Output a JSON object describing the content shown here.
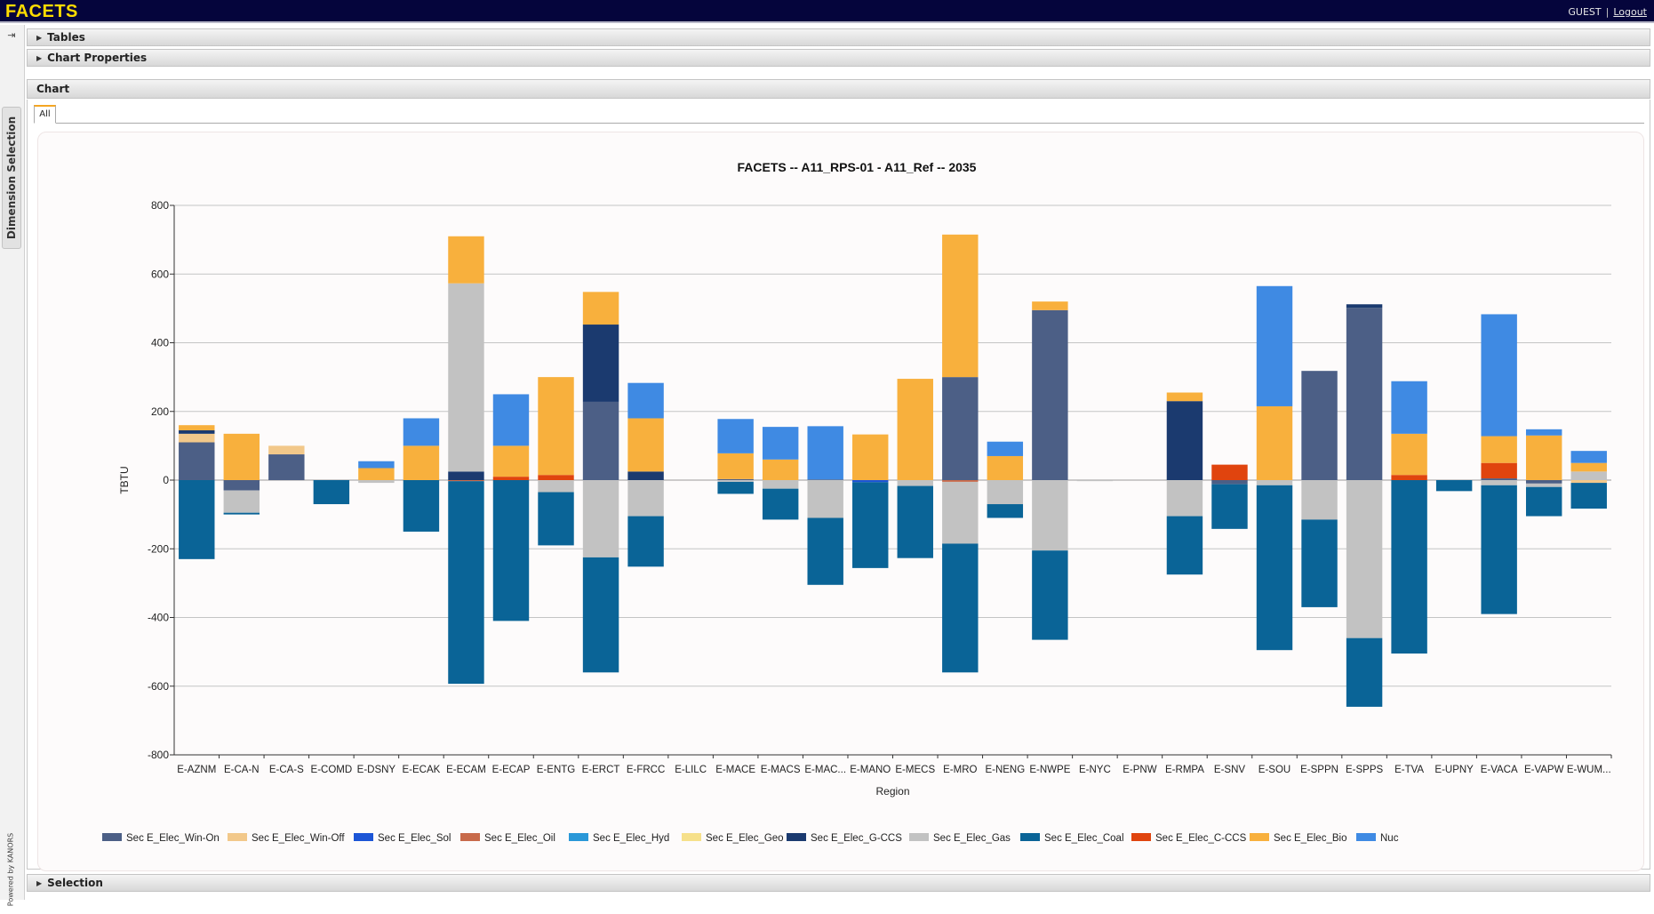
{
  "app": {
    "title": "FACETS",
    "user": "GUEST",
    "separator": "|",
    "logout": "Logout"
  },
  "sidebar": {
    "pin_icon": "pin-icon",
    "dimension_tab": "Dimension Selection",
    "powered_by": "Powered by KANORS"
  },
  "panels": {
    "tables": "Tables",
    "chart_properties": "Chart Properties",
    "chart": "Chart",
    "selection": "Selection"
  },
  "tabs": [
    {
      "label": "All"
    }
  ],
  "colors": {
    "Win-On": "#4c5f86",
    "Win-Off": "#f2c88a",
    "Sol": "#1c55d6",
    "Oil": "#c86a4a",
    "Hyd": "#2a98d8",
    "Geo": "#f6e08a",
    "G-CCS": "#1b3a6f",
    "Gas": "#c2c2c2",
    "Coal": "#0a6497",
    "C-CCS": "#e0440e",
    "Bio": "#f8b03d",
    "Nuc": "#3f8ae3"
  },
  "chart_data": {
    "type": "bar",
    "stacked": true,
    "title": "FACETS -- A11_RPS-01 - A11_Ref -- 2035",
    "xlabel": "Region",
    "ylabel": "TBTU",
    "ylim": [
      -800,
      800
    ],
    "yticks": [
      -800,
      -600,
      -400,
      -200,
      0,
      200,
      400,
      600,
      800
    ],
    "grid": true,
    "legend_position": "bottom",
    "categories": [
      "E-AZNM",
      "E-CA-N",
      "E-CA-S",
      "E-COMD",
      "E-DSNY",
      "E-ECAK",
      "E-ECAM",
      "E-ECAP",
      "E-ENTG",
      "E-ERCT",
      "E-FRCC",
      "E-LILC",
      "E-MACE",
      "E-MACS",
      "E-MAC...",
      "E-MANO",
      "E-MECS",
      "E-MRO",
      "E-NENG",
      "E-NWPE",
      "E-NYC",
      "E-PNW",
      "E-RMPA",
      "E-SNV",
      "E-SOU",
      "E-SPPN",
      "E-SPPS",
      "E-TVA",
      "E-UPNY",
      "E-VACA",
      "E-VAPW",
      "E-WUM..."
    ],
    "series": [
      {
        "name": "Sec E_Elec_Win-On",
        "key": "Win-On",
        "values": [
          110,
          -30,
          75,
          0,
          0,
          0,
          0,
          0,
          0,
          228,
          0,
          0,
          3,
          0,
          2,
          0,
          0,
          300,
          0,
          495,
          0,
          0,
          0,
          -12,
          0,
          318,
          502,
          0,
          0,
          5,
          -10,
          0
        ]
      },
      {
        "name": "Sec E_Elec_Win-Off",
        "key": "Win-Off",
        "values": [
          25,
          0,
          25,
          0,
          0,
          0,
          0,
          0,
          0,
          0,
          0,
          0,
          0,
          0,
          0,
          0,
          0,
          0,
          0,
          0,
          0,
          0,
          0,
          0,
          0,
          0,
          0,
          0,
          0,
          0,
          0,
          -8
        ]
      },
      {
        "name": "Sec E_Elec_Sol",
        "key": "Sol",
        "values": [
          0,
          0,
          0,
          0,
          0,
          0,
          0,
          0,
          0,
          0,
          0,
          0,
          0,
          0,
          0,
          -6,
          0,
          0,
          0,
          0,
          0,
          0,
          0,
          0,
          0,
          0,
          0,
          0,
          0,
          0,
          0,
          0
        ]
      },
      {
        "name": "Sec E_Elec_Oil",
        "key": "Oil",
        "values": [
          0,
          0,
          0,
          0,
          0,
          0,
          -3,
          0,
          0,
          0,
          0,
          0,
          0,
          0,
          0,
          0,
          0,
          -5,
          0,
          0,
          0,
          0,
          0,
          0,
          0,
          0,
          0,
          0,
          0,
          0,
          0,
          0
        ]
      },
      {
        "name": "Sec E_Elec_Hyd",
        "key": "Hyd",
        "values": [
          0,
          0,
          0,
          0,
          0,
          0,
          0,
          0,
          0,
          0,
          0,
          0,
          0,
          0,
          0,
          0,
          0,
          0,
          0,
          0,
          0,
          0,
          0,
          0,
          0,
          0,
          0,
          0,
          0,
          0,
          0,
          0
        ]
      },
      {
        "name": "Sec E_Elec_Geo",
        "key": "Geo",
        "values": [
          0,
          0,
          0,
          0,
          0,
          0,
          0,
          0,
          0,
          0,
          0,
          0,
          0,
          0,
          0,
          0,
          0,
          0,
          0,
          0,
          0,
          0,
          0,
          0,
          0,
          0,
          0,
          0,
          0,
          0,
          0,
          0
        ]
      },
      {
        "name": "Sec E_Elec_G-CCS",
        "key": "G-CCS",
        "values": [
          10,
          0,
          0,
          0,
          0,
          0,
          25,
          0,
          0,
          225,
          25,
          0,
          0,
          0,
          0,
          0,
          0,
          0,
          0,
          0,
          0,
          0,
          230,
          0,
          0,
          0,
          10,
          0,
          0,
          0,
          0,
          0
        ]
      },
      {
        "name": "Sec E_Elec_Gas",
        "key": "Gas",
        "values": [
          0,
          -65,
          0,
          0,
          -8,
          0,
          548,
          0,
          -35,
          -225,
          -105,
          0,
          -5,
          -25,
          -110,
          0,
          -17,
          -180,
          -70,
          -205,
          -3,
          0,
          -105,
          0,
          -15,
          -115,
          -460,
          0,
          0,
          -15,
          -10,
          25
        ]
      },
      {
        "name": "Sec E_Elec_Coal",
        "key": "Coal",
        "values": [
          -230,
          -5,
          0,
          -70,
          0,
          -150,
          -590,
          -410,
          -155,
          -335,
          -147,
          0,
          -35,
          -90,
          -195,
          -250,
          -210,
          -375,
          -40,
          -260,
          0,
          0,
          -170,
          -130,
          -480,
          -255,
          -200,
          -505,
          -32,
          -375,
          -85,
          -75
        ]
      },
      {
        "name": "Sec E_Elec_C-CCS",
        "key": "C-CCS",
        "values": [
          0,
          0,
          0,
          0,
          0,
          0,
          0,
          10,
          15,
          0,
          0,
          0,
          0,
          0,
          0,
          0,
          0,
          0,
          0,
          0,
          0,
          0,
          0,
          45,
          0,
          0,
          0,
          15,
          0,
          45,
          0,
          0
        ]
      },
      {
        "name": "Sec E_Elec_Bio",
        "key": "Bio",
        "values": [
          15,
          135,
          0,
          0,
          35,
          100,
          137,
          90,
          285,
          95,
          155,
          0,
          75,
          60,
          0,
          133,
          295,
          415,
          70,
          25,
          0,
          0,
          25,
          0,
          215,
          0,
          0,
          120,
          0,
          78,
          130,
          25
        ]
      },
      {
        "name": "Nuc",
        "key": "Nuc",
        "values": [
          0,
          0,
          0,
          0,
          20,
          80,
          0,
          150,
          0,
          0,
          103,
          0,
          100,
          95,
          155,
          0,
          0,
          0,
          42,
          0,
          0,
          0,
          0,
          0,
          350,
          0,
          0,
          153,
          0,
          355,
          18,
          35
        ]
      }
    ]
  }
}
